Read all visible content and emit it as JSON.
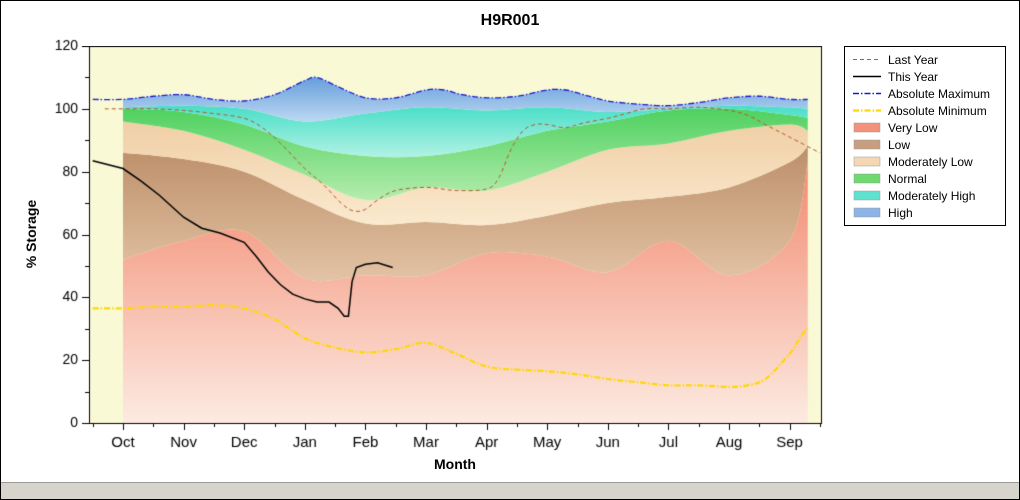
{
  "window": {
    "statusbar_text": ""
  },
  "chart_data": {
    "type": "area",
    "title": "H9R001",
    "xlabel": "Month",
    "ylabel": "% Storage",
    "x_categories": [
      "Oct",
      "Nov",
      "Dec",
      "Jan",
      "Feb",
      "Mar",
      "Apr",
      "May",
      "Jun",
      "Jul",
      "Aug",
      "Sep"
    ],
    "ylim": [
      0,
      120
    ],
    "ytick_major": 20,
    "ytick_minor": 10,
    "plot_bg": "#f9f9d6",
    "band_x": [
      0,
      1,
      2,
      3,
      4,
      5,
      6,
      7,
      8,
      9,
      10,
      11,
      11.3
    ],
    "bands": [
      {
        "name": "Very Low",
        "color_top": "#f28a70",
        "color_bottom": "#fdebe2",
        "upper": [
          52,
          58,
          61,
          46,
          47,
          47,
          54,
          53,
          48,
          58,
          47,
          58,
          83
        ]
      },
      {
        "name": "Low",
        "color_top": "#bd8f6a",
        "color_bottom": "#e2c3a4",
        "upper": [
          86,
          84,
          80,
          71,
          63.5,
          64,
          63,
          66,
          70,
          72,
          75,
          83,
          88
        ]
      },
      {
        "name": "Moderately Low",
        "color_top": "#f0cfa6",
        "color_bottom": "#fbeacf",
        "upper": [
          96,
          93,
          87,
          79,
          71,
          75,
          74,
          80,
          87,
          89,
          93,
          95,
          93
        ]
      },
      {
        "name": "Normal",
        "color_top": "#4fd160",
        "color_bottom": "#b5edae",
        "upper": [
          100,
          99,
          95,
          88,
          85,
          85,
          88,
          93,
          96,
          99.5,
          100,
          98,
          97
        ]
      },
      {
        "name": "Moderately High",
        "color_top": "#49dfc8",
        "color_bottom": "#b0f2e4",
        "upper": [
          100.5,
          101,
          100,
          96,
          98.5,
          100.5,
          99.5,
          100.5,
          99,
          100,
          101,
          100.5,
          100
        ]
      },
      {
        "name": "High",
        "color_top": "#679fdc",
        "color_bottom": "#bdd9f3",
        "upper_from_line": "Absolute Maximum"
      }
    ],
    "lines": [
      {
        "name": "Last Year",
        "color": "#b35a28",
        "dash": [
          4,
          3
        ],
        "width": 1,
        "smooth": true,
        "x": [
          -0.3,
          0,
          0.5,
          1,
          1.5,
          2,
          2.3,
          2.6,
          3,
          3.3,
          3.6,
          3.8,
          4,
          4.2,
          4.5,
          5,
          5.5,
          6,
          6.2,
          6.4,
          6.6,
          6.8,
          7,
          7.3,
          7.6,
          8,
          8.3,
          8.6,
          9,
          9.5,
          10,
          10.3,
          10.6,
          11,
          11.5
        ],
        "y": [
          100,
          100,
          100,
          99.5,
          98.5,
          97,
          94,
          89,
          81,
          76,
          70,
          67.5,
          68,
          71,
          74,
          75,
          74,
          74.5,
          78,
          87,
          93,
          95,
          95,
          94,
          95.5,
          97,
          98.5,
          100,
          100,
          100.5,
          99.5,
          98,
          95,
          91,
          86
        ]
      },
      {
        "name": "Absolute Maximum",
        "color": "#1a1acc",
        "dash": [
          6,
          2,
          1.5,
          2
        ],
        "width": 1.3,
        "smooth": true,
        "x": [
          -0.5,
          0,
          0.5,
          1,
          1.5,
          2,
          2.5,
          3,
          3.2,
          3.5,
          4,
          4.5,
          5,
          5.3,
          5.6,
          6,
          6.5,
          7,
          7.3,
          7.6,
          8,
          8.5,
          9,
          9.5,
          10,
          10.5,
          11,
          11.3
        ],
        "y": [
          103,
          103,
          104,
          104.5,
          103,
          102.5,
          104.5,
          109,
          110,
          107.5,
          103.5,
          103.5,
          106,
          106,
          104.5,
          103.5,
          104,
          106,
          106,
          104.5,
          102.5,
          101.5,
          101,
          102,
          103.5,
          104,
          103,
          103
        ]
      },
      {
        "name": "Absolute Minimum",
        "color": "#ffd800",
        "dash": [
          6,
          2,
          1.5,
          2
        ],
        "width": 2.2,
        "smooth": true,
        "x": [
          -0.5,
          0,
          0.5,
          1,
          1.5,
          2,
          2.5,
          3,
          3.5,
          4,
          4.5,
          5,
          5.5,
          6,
          6.5,
          7,
          7.5,
          8,
          8.5,
          9,
          9.5,
          10,
          10.3,
          10.6,
          11,
          11.2,
          11.3
        ],
        "y": [
          36.5,
          36.5,
          37,
          37,
          37.5,
          36.5,
          33,
          27,
          24,
          22.5,
          23.5,
          25.5,
          22,
          18,
          17,
          16.5,
          15.5,
          14,
          13,
          12,
          12,
          11.5,
          12,
          14,
          22,
          28,
          30
        ]
      },
      {
        "name": "This Year",
        "color": "#000000",
        "dash": [],
        "width": 1.5,
        "smooth": false,
        "x": [
          -0.5,
          0,
          0.3,
          0.6,
          1,
          1.3,
          1.6,
          2,
          2.2,
          2.4,
          2.6,
          2.8,
          3,
          3.2,
          3.4,
          3.55,
          3.65,
          3.72,
          3.78,
          3.85,
          4,
          4.2,
          4.45
        ],
        "y": [
          83.5,
          81,
          77,
          72.5,
          65.5,
          62,
          60.5,
          57.5,
          53,
          48,
          44,
          41,
          39.5,
          38.5,
          38.5,
          36.5,
          34,
          34,
          45,
          49.5,
          50.5,
          51,
          49.5
        ]
      }
    ],
    "legend": {
      "items": [
        {
          "label": "Last Year",
          "kind": "line",
          "color": "#b35a28",
          "dash": [
            4,
            3
          ],
          "width": 1
        },
        {
          "label": "This Year",
          "kind": "line",
          "color": "#000000",
          "dash": [],
          "width": 1.4
        },
        {
          "label": "Absolute Maximum",
          "kind": "line",
          "color": "#1a1acc",
          "dash": [
            6,
            2,
            1.5,
            2
          ],
          "width": 1.4
        },
        {
          "label": "Absolute Minimum",
          "kind": "line",
          "color": "#ffd800",
          "dash": [
            6,
            2,
            1.5,
            2
          ],
          "width": 2.2
        },
        {
          "label": "Very Low",
          "kind": "box",
          "color": "#f4917b"
        },
        {
          "label": "Low",
          "kind": "box",
          "color": "#c79e7f"
        },
        {
          "label": "Moderately Low",
          "kind": "box",
          "color": "#f4d8b4"
        },
        {
          "label": "Normal",
          "kind": "box",
          "color": "#6fd96f"
        },
        {
          "label": "Moderately High",
          "kind": "box",
          "color": "#5ee2cf"
        },
        {
          "label": "High",
          "kind": "box",
          "color": "#8cb4e6"
        }
      ]
    }
  }
}
